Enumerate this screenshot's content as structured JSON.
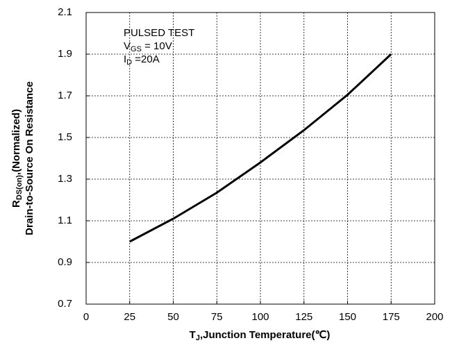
{
  "chart_data": {
    "type": "line",
    "x_label": {
      "main": "T",
      "sub": "J",
      "rest": ",Junction Temperature(℃)"
    },
    "y_label": [
      {
        "main": "R",
        "sub": "DS(on)",
        "rest": ",(Normalized)"
      },
      {
        "main": "Drain-to-Source On Resistance"
      }
    ],
    "annotation": [
      {
        "main": "PULSED TEST"
      },
      {
        "main": "V",
        "sub": "GS",
        "rest": " = 10V"
      },
      {
        "main": "I",
        "sub": "D",
        "rest": " =20A"
      }
    ],
    "x": [
      25,
      50,
      75,
      100,
      125,
      150,
      175
    ],
    "series": [
      {
        "color": "#000000",
        "values": [
          1.0,
          1.11,
          1.235,
          1.38,
          1.535,
          1.705,
          1.9
        ]
      }
    ],
    "xlim": [
      0,
      200
    ],
    "xticks": [
      0,
      25,
      50,
      75,
      100,
      125,
      150,
      175,
      200
    ],
    "ylim": [
      0.7,
      2.1
    ],
    "yticks": [
      0.7,
      0.9,
      1.1,
      1.3,
      1.5,
      1.7,
      1.9,
      2.1
    ],
    "grid": true
  }
}
